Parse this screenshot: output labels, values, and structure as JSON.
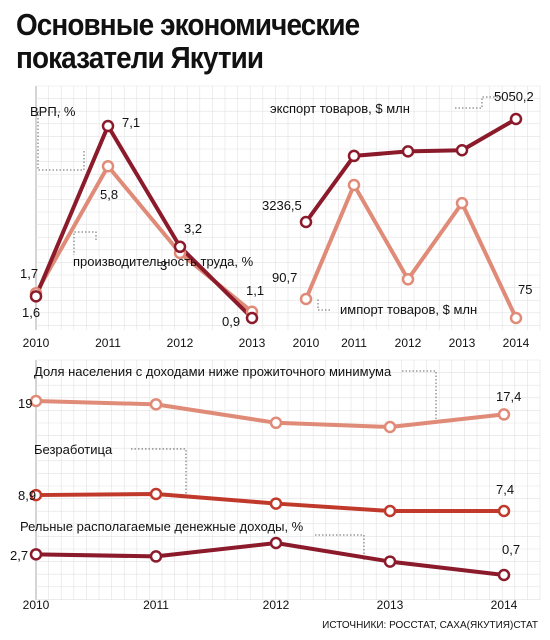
{
  "title": "Основные экономические показатели Якутии",
  "source": "ИСТОЧНИКИ: РОССТАТ, САХА(ЯКУТИЯ)СТАТ",
  "colors": {
    "dark": "#8b1a2b",
    "light": "#e08a78",
    "mid": "#c0392b",
    "grid": "#d0d0d0"
  },
  "chart_data": [
    {
      "type": "line",
      "x": [
        "2010",
        "2011",
        "2012",
        "2013"
      ],
      "series": [
        {
          "name": "ВРП, %",
          "values": [
            1.6,
            7.1,
            3.2,
            0.9
          ],
          "labels": [
            "1,6",
            "7,1",
            "3,2",
            "0,9"
          ],
          "color": "dark"
        },
        {
          "name": "производительность труда, %",
          "values": [
            1.7,
            5.8,
            3,
            1.1
          ],
          "labels": [
            "1,7",
            "5,8",
            "3",
            "1,1"
          ],
          "color": "light"
        }
      ]
    },
    {
      "type": "line",
      "x": [
        "2010",
        "2011",
        "2012",
        "2013",
        "2014"
      ],
      "series": [
        {
          "name": "экспорт товаров, $ млн",
          "values": [
            3236.5,
            4400,
            4480,
            4500,
            5050.2
          ],
          "labels": [
            "3236,5",
            "",
            "",
            "",
            "5050,2"
          ],
          "color": "dark"
        },
        {
          "name": "импорт товаров, $ млн",
          "values": [
            90.7,
            185,
            107,
            170,
            75
          ],
          "labels": [
            "90,7",
            "",
            "",
            "",
            "75"
          ],
          "color": "light"
        }
      ]
    },
    {
      "type": "line",
      "x": [
        "2010",
        "2011",
        "2012",
        "2013",
        "2014"
      ],
      "series": [
        {
          "name": "Доля населения с доходами ниже прожиточного минимума",
          "values": [
            19,
            18.6,
            16.4,
            15.9,
            17.4
          ],
          "labels": [
            "19",
            "",
            "",
            "",
            "17,4"
          ],
          "color": "light"
        }
      ]
    },
    {
      "type": "line",
      "x": [
        "2010",
        "2011",
        "2012",
        "2013",
        "2014"
      ],
      "series": [
        {
          "name": "Безработица",
          "values": [
            8.9,
            9.0,
            8.1,
            7.4,
            7.4
          ],
          "labels": [
            "8,9",
            "",
            "",
            "",
            "7,4"
          ],
          "color": "mid"
        }
      ]
    },
    {
      "type": "line",
      "x": [
        "2010",
        "2011",
        "2012",
        "2013",
        "2014"
      ],
      "series": [
        {
          "name": "Рельные располагаемые денежные доходы, %",
          "values": [
            2.7,
            2.5,
            3.8,
            2.0,
            0.7
          ],
          "labels": [
            "2,7",
            "",
            "",
            "",
            "0,7"
          ],
          "color": "dark"
        }
      ]
    }
  ]
}
